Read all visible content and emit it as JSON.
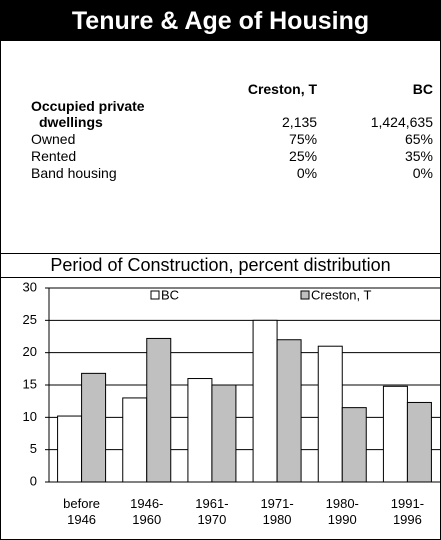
{
  "header": {
    "title": "Tenure & Age of Housing"
  },
  "table": {
    "columns": [
      "Creston, T",
      "BC"
    ],
    "rows": [
      {
        "label": "Occupied private dwellings",
        "values": [
          "2,135",
          "1,424,635"
        ],
        "bold": true
      },
      {
        "label": "Owned",
        "values": [
          "75%",
          "65%"
        ]
      },
      {
        "label": "Rented",
        "values": [
          "25%",
          "35%"
        ]
      },
      {
        "label": "Band housing",
        "values": [
          "0%",
          "0%"
        ]
      }
    ]
  },
  "chart_data": {
    "type": "bar",
    "title": "Period of Construction, percent distribution",
    "categories": [
      "before 1946",
      "1946-1960",
      "1961-1970",
      "1971-1980",
      "1980-1990",
      "1991-1996"
    ],
    "series": [
      {
        "name": "BC",
        "color": "#ffffff",
        "values": [
          10.2,
          13,
          16,
          25,
          21,
          14.8
        ]
      },
      {
        "name": "Creston, T",
        "color": "#c0c0c0",
        "values": [
          16.8,
          22.2,
          15,
          22,
          11.5,
          12.3
        ]
      }
    ],
    "ylim": [
      0,
      30
    ],
    "yticks": [
      0,
      5,
      10,
      15,
      20,
      25,
      30
    ],
    "grid": true,
    "legend": "top"
  }
}
